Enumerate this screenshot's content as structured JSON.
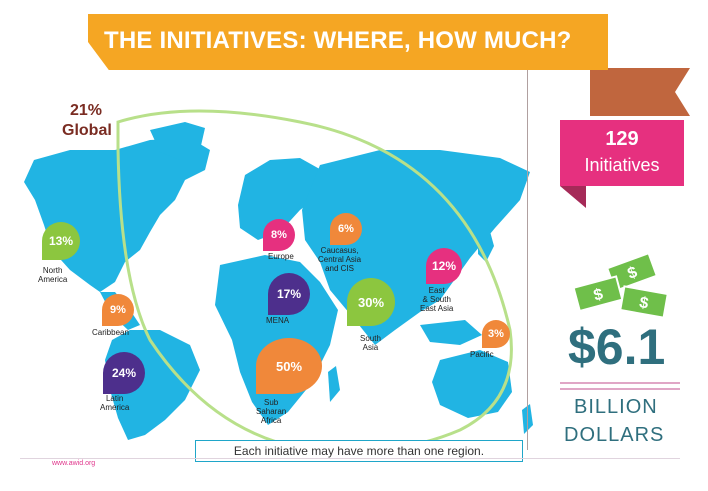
{
  "header": {
    "title": "THE INITIATIVES: WHERE, HOW MUCH?"
  },
  "global": {
    "percent": "21%",
    "label": "Global"
  },
  "initiatives": {
    "count": "129",
    "label": "Initiatives"
  },
  "funding": {
    "amount": "$6.1",
    "unit_line1": "BILLION",
    "unit_line2": "DOLLARS"
  },
  "note": "Each  initiative may have more than one region.",
  "footer": {
    "url": "www.awid.org"
  },
  "colors": {
    "banner": "#f5a623",
    "banner_fold": "#c0663e",
    "map": "#21b4e3",
    "global_ring": "#b8e08a",
    "pink": "#e6307f",
    "purple": "#4d2f8c",
    "green": "#8cc63f",
    "orange": "#f0883a",
    "amount_text": "#2f6f7e",
    "money_green": "#6fbf4a"
  },
  "regions": [
    {
      "id": "north-america",
      "percent": "13%",
      "lines": [
        "North",
        "America"
      ],
      "color": "green"
    },
    {
      "id": "caribbean",
      "percent": "9%",
      "lines": [
        "Caribbean"
      ],
      "color": "orange"
    },
    {
      "id": "latin-america",
      "percent": "24%",
      "lines": [
        "Latin",
        "America"
      ],
      "color": "purple"
    },
    {
      "id": "europe",
      "percent": "8%",
      "lines": [
        "Europe"
      ],
      "color": "pink"
    },
    {
      "id": "caucasus",
      "percent": "6%",
      "lines": [
        "Caucasus,",
        "Central Asia",
        "and CIS"
      ],
      "color": "orange"
    },
    {
      "id": "mena",
      "percent": "17%",
      "lines": [
        "MENA"
      ],
      "color": "purple"
    },
    {
      "id": "south-asia",
      "percent": "30%",
      "lines": [
        "South",
        "Asia"
      ],
      "color": "green"
    },
    {
      "id": "east-asia",
      "percent": "12%",
      "lines": [
        "East",
        "& South",
        "East Asia"
      ],
      "color": "pink"
    },
    {
      "id": "pacific",
      "percent": "3%",
      "lines": [
        "Pacific"
      ],
      "color": "orange"
    },
    {
      "id": "sub-saharan-africa",
      "percent": "50%",
      "lines": [
        "Sub",
        "Saharan",
        "Africa"
      ],
      "color": "orange"
    }
  ]
}
